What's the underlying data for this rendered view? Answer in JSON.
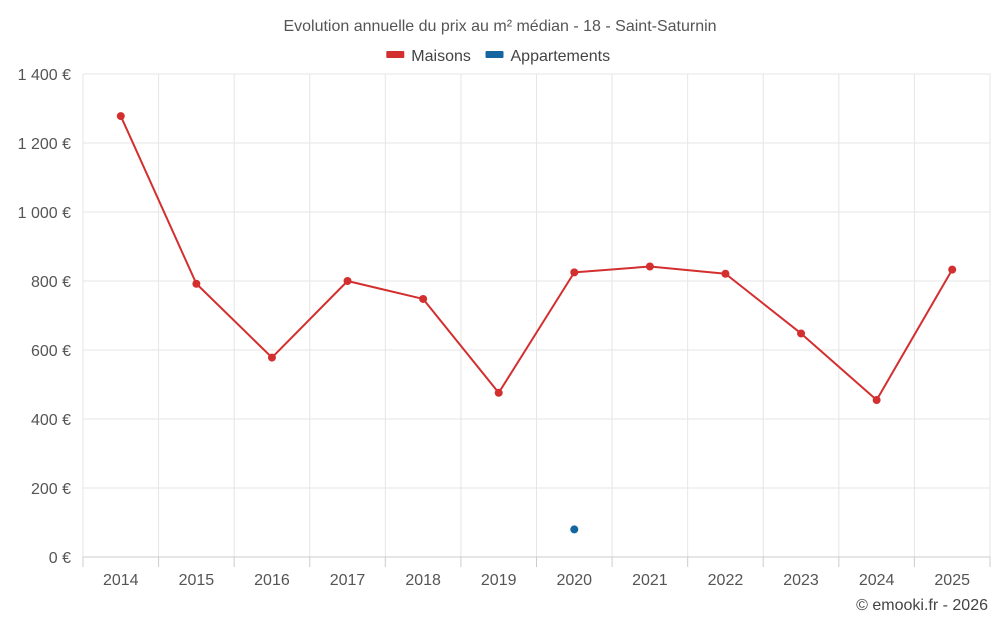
{
  "chart_data": {
    "type": "line",
    "title": "Evolution annuelle du prix au m² médian - 18 - Saint-Saturnin",
    "categories": [
      "2014",
      "2015",
      "2016",
      "2017",
      "2018",
      "2019",
      "2020",
      "2021",
      "2022",
      "2023",
      "2024",
      "2025"
    ],
    "series": [
      {
        "name": "Maisons",
        "color": "#d32f2f",
        "values": [
          1278,
          792,
          578,
          800,
          748,
          476,
          825,
          842,
          821,
          648,
          455,
          833
        ]
      },
      {
        "name": "Appartements",
        "color": "#1565a0",
        "values": [
          null,
          null,
          null,
          null,
          null,
          null,
          80,
          null,
          null,
          null,
          null,
          null
        ]
      }
    ],
    "ylim": [
      0,
      1400
    ],
    "yticks": [
      0,
      200,
      400,
      600,
      800,
      1000,
      1200,
      1400
    ],
    "ytick_labels": [
      "0 €",
      "200 €",
      "400 €",
      "600 €",
      "800 €",
      "1 000 €",
      "1 200 €",
      "1 400 €"
    ],
    "grid": true,
    "legend_position": "top-center"
  },
  "credit": "© emooki.fr - 2026"
}
